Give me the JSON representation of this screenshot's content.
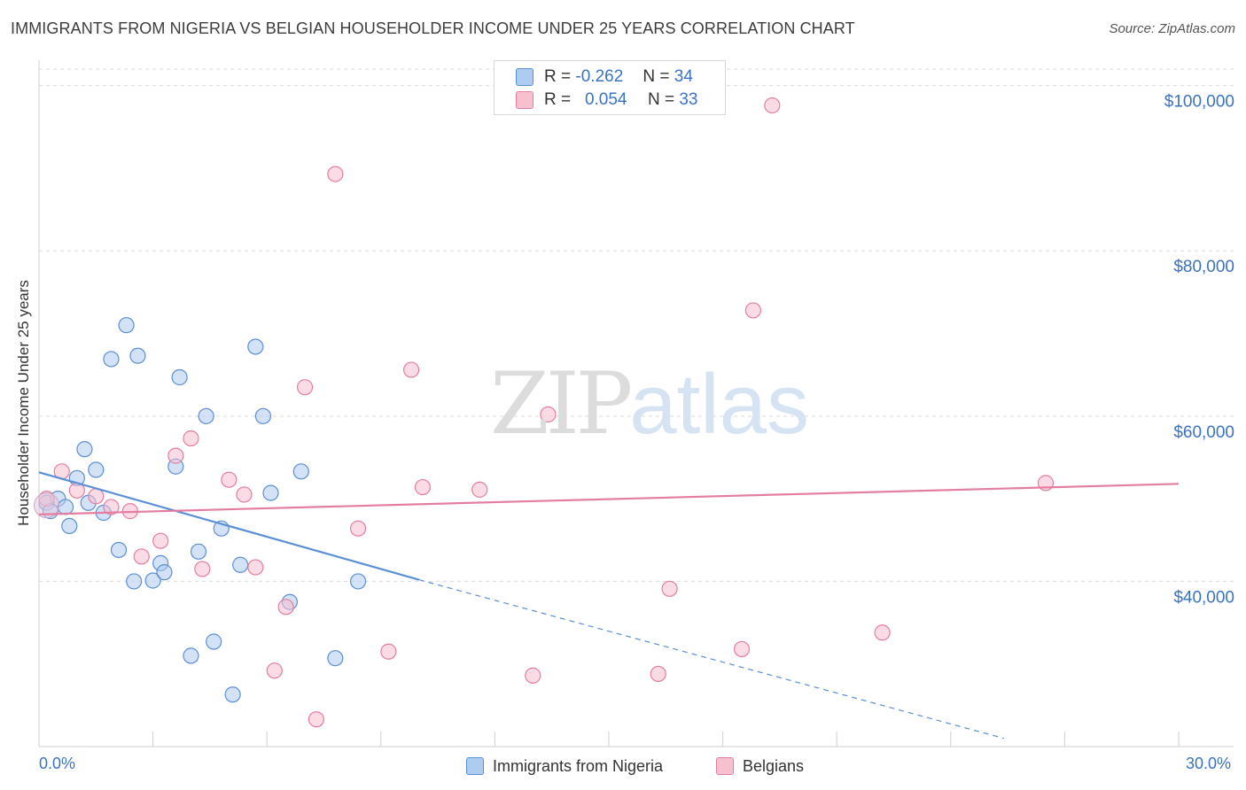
{
  "title": "IMMIGRANTS FROM NIGERIA VS BELGIAN HOUSEHOLDER INCOME UNDER 25 YEARS CORRELATION CHART",
  "source": "Source: ZipAtlas.com",
  "watermark": {
    "zip": "ZIP",
    "atlas": "atlas"
  },
  "legend": {
    "rows": [
      {
        "r_label": "R =",
        "r_value": "-0.262",
        "n_label": "N =",
        "n_value": "34",
        "color": "#aecbf0",
        "border": "#5b8fd6"
      },
      {
        "r_label": "R =",
        "r_value": "0.054",
        "n_label": "N =",
        "n_value": "33",
        "color": "#f7c0cf",
        "border": "#e47ea0"
      }
    ]
  },
  "bottom_legend": {
    "series1": "Immigrants from Nigeria",
    "series2": "Belgians"
  },
  "x_axis": {
    "min_label": "0.0%",
    "max_label": "30.0%"
  },
  "chart_data": {
    "type": "scatter",
    "title": "IMMIGRANTS FROM NIGERIA VS BELGIAN HOUSEHOLDER INCOME UNDER 25 YEARS CORRELATION CHART",
    "xlabel": "",
    "ylabel": "Householder Income Under 25 years",
    "xlim": [
      0,
      30
    ],
    "ylim": [
      20000,
      102000
    ],
    "x_unit": "%",
    "y_ticks": [
      40000,
      60000,
      80000,
      100000
    ],
    "y_tick_labels": [
      "$40,000",
      "$60,000",
      "$80,000",
      "$100,000"
    ],
    "x_tick_values": [
      3,
      6,
      9,
      12,
      15,
      18,
      21,
      24,
      27,
      30
    ],
    "grid": true,
    "series": [
      {
        "name": "Immigrants from Nigeria",
        "color": "#5b8fd6",
        "fill": "#aecbf0",
        "trend": {
          "x0": 0,
          "y0": 53200,
          "x1": 10,
          "y1": 40200,
          "dash_to_x": 25.4,
          "dash_to_y": 21000
        },
        "points": [
          [
            0.2,
            49500
          ],
          [
            0.3,
            48500
          ],
          [
            0.5,
            50000
          ],
          [
            0.7,
            49000
          ],
          [
            0.8,
            46700
          ],
          [
            1.0,
            52500
          ],
          [
            1.2,
            56000
          ],
          [
            1.3,
            49500
          ],
          [
            1.5,
            53500
          ],
          [
            1.7,
            48300
          ],
          [
            1.9,
            66900
          ],
          [
            2.1,
            43800
          ],
          [
            2.3,
            71000
          ],
          [
            2.5,
            40000
          ],
          [
            2.6,
            67300
          ],
          [
            3.0,
            40100
          ],
          [
            3.2,
            42200
          ],
          [
            3.3,
            41100
          ],
          [
            3.6,
            53900
          ],
          [
            3.7,
            64700
          ],
          [
            4.0,
            31000
          ],
          [
            4.2,
            43600
          ],
          [
            4.4,
            60000
          ],
          [
            4.6,
            32700
          ],
          [
            4.8,
            46400
          ],
          [
            5.1,
            26300
          ],
          [
            5.3,
            42000
          ],
          [
            5.7,
            68400
          ],
          [
            5.9,
            60000
          ],
          [
            6.1,
            50700
          ],
          [
            6.6,
            37500
          ],
          [
            6.9,
            53300
          ],
          [
            7.8,
            30700
          ],
          [
            8.4,
            40000
          ]
        ]
      },
      {
        "name": "Belgians",
        "color": "#e47ea0",
        "fill": "#f7c0cf",
        "trend": {
          "x0": 0,
          "y0": 48100,
          "x1": 30,
          "y1": 51800
        },
        "points": [
          [
            0.2,
            50000
          ],
          [
            0.6,
            53300
          ],
          [
            1.0,
            51000
          ],
          [
            1.5,
            50300
          ],
          [
            1.9,
            49000
          ],
          [
            2.4,
            48500
          ],
          [
            2.7,
            43000
          ],
          [
            3.2,
            44900
          ],
          [
            3.6,
            55200
          ],
          [
            4.0,
            57300
          ],
          [
            4.3,
            41500
          ],
          [
            5.0,
            52300
          ],
          [
            5.4,
            50500
          ],
          [
            5.7,
            41700
          ],
          [
            6.2,
            29200
          ],
          [
            6.5,
            36900
          ],
          [
            7.0,
            63500
          ],
          [
            7.3,
            23300
          ],
          [
            7.8,
            89300
          ],
          [
            8.4,
            46400
          ],
          [
            9.2,
            31500
          ],
          [
            9.8,
            65600
          ],
          [
            10.1,
            51400
          ],
          [
            11.6,
            51100
          ],
          [
            13.0,
            28600
          ],
          [
            13.4,
            60200
          ],
          [
            16.3,
            28800
          ],
          [
            16.6,
            39100
          ],
          [
            18.5,
            31800
          ],
          [
            18.8,
            72800
          ],
          [
            19.3,
            97600
          ],
          [
            22.2,
            33800
          ],
          [
            26.5,
            51900
          ]
        ]
      }
    ]
  }
}
